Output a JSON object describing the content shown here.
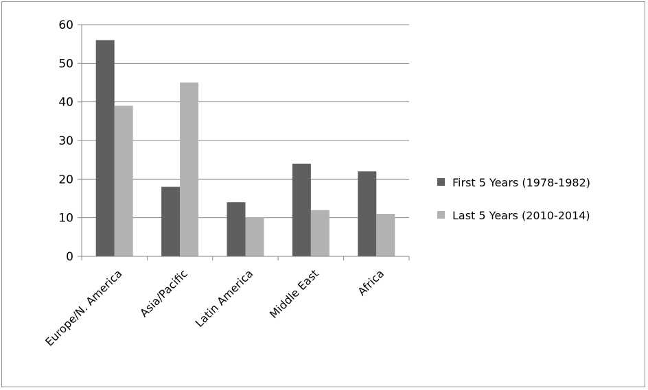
{
  "chart_data": {
    "type": "bar",
    "title": "",
    "xlabel": "",
    "ylabel": "",
    "ylim": [
      0,
      60
    ],
    "yticks": [
      0,
      10,
      20,
      30,
      40,
      50,
      60
    ],
    "grid": true,
    "legend_position": "right",
    "categories": [
      "Europe/N. America",
      "Asia/Pacific",
      "Latin America",
      "Middle East",
      "Africa"
    ],
    "series": [
      {
        "name": "First 5 Years (1978-1982)",
        "color": "#5f5f5f",
        "values": [
          56,
          18,
          14,
          24,
          22
        ]
      },
      {
        "name": "Last 5 Years (2010-2014)",
        "color": "#b2b2b2",
        "values": [
          39,
          45,
          10,
          12,
          11
        ]
      }
    ]
  }
}
